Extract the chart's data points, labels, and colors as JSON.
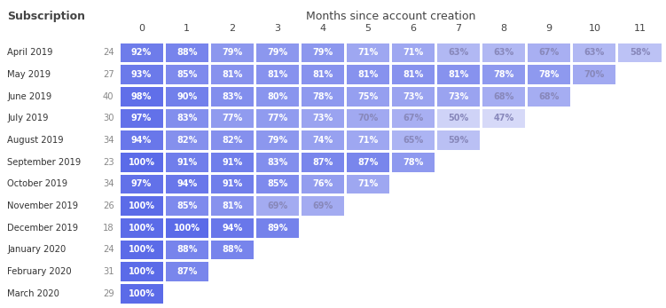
{
  "title": "Months since account creation",
  "row_label": "Subscription",
  "rows": [
    {
      "label": "April 2019",
      "count": 24,
      "values": [
        92,
        88,
        79,
        79,
        79,
        71,
        71,
        63,
        63,
        67,
        63,
        58
      ]
    },
    {
      "label": "May 2019",
      "count": 27,
      "values": [
        93,
        85,
        81,
        81,
        81,
        81,
        81,
        81,
        78,
        78,
        70,
        null
      ]
    },
    {
      "label": "June 2019",
      "count": 40,
      "values": [
        98,
        90,
        83,
        80,
        78,
        75,
        73,
        73,
        68,
        68,
        null,
        null
      ]
    },
    {
      "label": "July 2019",
      "count": 30,
      "values": [
        97,
        83,
        77,
        77,
        73,
        70,
        67,
        50,
        47,
        null,
        null,
        null
      ]
    },
    {
      "label": "August 2019",
      "count": 34,
      "values": [
        94,
        82,
        82,
        79,
        74,
        71,
        65,
        59,
        null,
        null,
        null,
        null
      ]
    },
    {
      "label": "September 2019",
      "count": 23,
      "values": [
        100,
        91,
        91,
        83,
        87,
        87,
        78,
        null,
        null,
        null,
        null,
        null
      ]
    },
    {
      "label": "October 2019",
      "count": 34,
      "values": [
        97,
        94,
        91,
        85,
        76,
        71,
        null,
        null,
        null,
        null,
        null,
        null
      ]
    },
    {
      "label": "November 2019",
      "count": 26,
      "values": [
        100,
        85,
        81,
        69,
        69,
        null,
        null,
        null,
        null,
        null,
        null,
        null
      ]
    },
    {
      "label": "December 2019",
      "count": 18,
      "values": [
        100,
        100,
        94,
        89,
        null,
        null,
        null,
        null,
        null,
        null,
        null,
        null
      ]
    },
    {
      "label": "January 2020",
      "count": 24,
      "values": [
        100,
        88,
        88,
        null,
        null,
        null,
        null,
        null,
        null,
        null,
        null,
        null
      ]
    },
    {
      "label": "February 2020",
      "count": 31,
      "values": [
        100,
        87,
        null,
        null,
        null,
        null,
        null,
        null,
        null,
        null,
        null,
        null
      ]
    },
    {
      "label": "March 2020",
      "count": 29,
      "values": [
        100,
        null,
        null,
        null,
        null,
        null,
        null,
        null,
        null,
        null,
        null,
        null
      ]
    }
  ],
  "col_labels": [
    "0",
    "1",
    "2",
    "3",
    "4",
    "5",
    "6",
    "7",
    "8",
    "9",
    "10",
    "11"
  ],
  "bg_color": "#ffffff",
  "cell_color_high": "#5B6BE8",
  "cell_color_low": "#D6D9F8",
  "text_color_dark": "#ffffff",
  "text_color_light": "#8888bb",
  "header_color": "#444444",
  "label_color": "#333333",
  "count_color": "#888888",
  "val_min": 47,
  "val_max": 100,
  "threshold": 0.45
}
